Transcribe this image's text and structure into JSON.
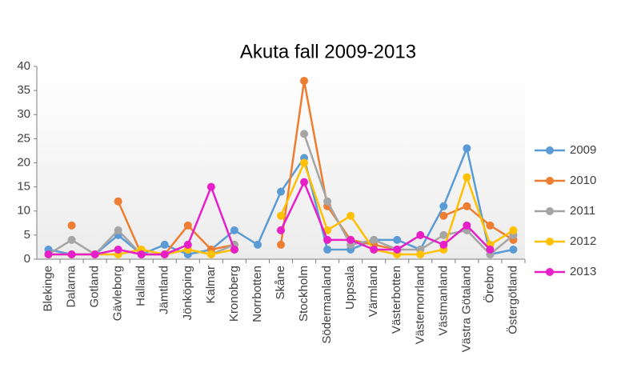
{
  "chart_data": {
    "type": "line",
    "title": "Akuta fall 2009-2013",
    "categories": [
      "Blekinge",
      "Dalarna",
      "Gotland",
      "Gävleborg",
      "Halland",
      "Jämtland",
      "Jönköping",
      "Kalmar",
      "Kronoberg",
      "Norrbotten",
      "Skåne",
      "Stockholm",
      "Södermanland",
      "Uppsala",
      "Värmland",
      "Västerbotten",
      "Västernorrland",
      "Västmanland",
      "Västra Götaland",
      "Örebro",
      "Östergötland"
    ],
    "series": [
      {
        "name": "2009",
        "color": "#5b9bd5",
        "values": [
          2,
          1,
          1,
          5,
          1,
          3,
          1,
          2,
          6,
          3,
          14,
          21,
          2,
          2,
          4,
          4,
          2,
          11,
          23,
          1,
          2
        ]
      },
      {
        "name": "2010",
        "color": "#ed7d31",
        "values": [
          null,
          7,
          null,
          12,
          1,
          1,
          7,
          2,
          3,
          null,
          3,
          37,
          11,
          4,
          3,
          2,
          null,
          9,
          11,
          7,
          4
        ]
      },
      {
        "name": "2011",
        "color": "#a5a5a5",
        "values": [
          1,
          4,
          1,
          6,
          1,
          1,
          2,
          1,
          3,
          null,
          null,
          26,
          12,
          3,
          4,
          2,
          2,
          5,
          6,
          1,
          5
        ]
      },
      {
        "name": "2012",
        "color": "#ffc000",
        "values": [
          1,
          1,
          1,
          1,
          2,
          1,
          2,
          1,
          2,
          null,
          9,
          20,
          6,
          9,
          2,
          1,
          1,
          2,
          17,
          3,
          6
        ]
      },
      {
        "name": "2013",
        "color": "#e61fc8",
        "values": [
          1,
          1,
          1,
          2,
          1,
          1,
          3,
          15,
          2,
          null,
          6,
          16,
          4,
          4,
          2,
          2,
          5,
          3,
          7,
          2,
          null
        ]
      }
    ],
    "ylim": [
      0,
      40
    ],
    "yticks": [
      0,
      5,
      10,
      15,
      20,
      25,
      30,
      35,
      40
    ],
    "grid": false,
    "legend": "right"
  }
}
